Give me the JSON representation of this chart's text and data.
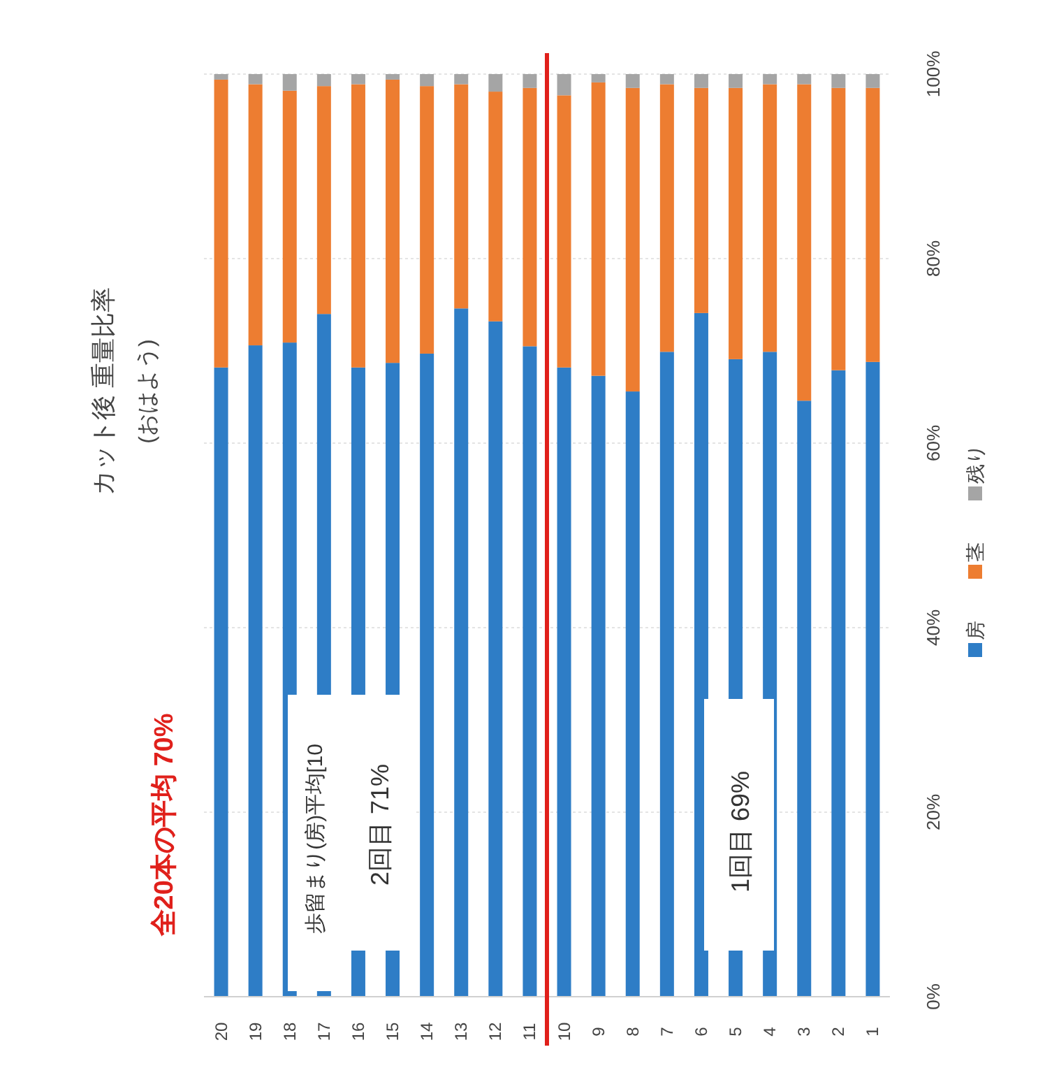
{
  "chart_data": {
    "type": "bar",
    "stacked": true,
    "title": "カット後 重量比率",
    "subtitle": "(おはよう)",
    "x": [
      20,
      19,
      18,
      17,
      16,
      15,
      14,
      13,
      12,
      11,
      10,
      9,
      8,
      7,
      6,
      5,
      4,
      3,
      2,
      1
    ],
    "xlim": [
      20.5,
      0.5
    ],
    "xticks": [
      1,
      2,
      3,
      4,
      5,
      6,
      7,
      8,
      9,
      10,
      11,
      12,
      13,
      14,
      15,
      16,
      17,
      18,
      19,
      20
    ],
    "ylim": [
      0,
      100
    ],
    "yticks": [
      {
        "value": 0,
        "label": "0%"
      },
      {
        "value": 20,
        "label": "20%"
      },
      {
        "value": 40,
        "label": "40%"
      },
      {
        "value": 60,
        "label": "60%"
      },
      {
        "value": 80,
        "label": "80%"
      },
      {
        "value": 100,
        "label": "100%"
      }
    ],
    "grid": "y",
    "legend": "right",
    "series": [
      {
        "name": "房",
        "color": "#2e7dc6",
        "values": [
          68.2,
          70.6,
          70.9,
          74.0,
          68.2,
          68.7,
          69.7,
          74.6,
          73.2,
          70.5,
          68.2,
          67.3,
          65.6,
          69.9,
          74.1,
          69.1,
          69.9,
          64.6,
          67.9,
          68.8
        ]
      },
      {
        "name": "茎",
        "color": "#ed7d31",
        "values": [
          31.2,
          28.3,
          27.3,
          24.7,
          30.7,
          30.7,
          29.0,
          24.3,
          24.9,
          28.0,
          29.5,
          31.8,
          32.9,
          29.0,
          24.4,
          29.4,
          29.0,
          34.3,
          30.6,
          29.7
        ]
      },
      {
        "name": "残り",
        "color": "#a5a5a5",
        "values": [
          0.6,
          1.1,
          1.8,
          1.3,
          1.1,
          0.6,
          1.3,
          1.1,
          1.9,
          1.5,
          2.3,
          0.9,
          1.5,
          1.1,
          1.5,
          1.5,
          1.1,
          1.1,
          1.5,
          1.5
        ]
      }
    ],
    "ref_lines": [
      {
        "axis": "x",
        "value": 10.5,
        "color": "#e0201b"
      }
    ],
    "annotations": [
      "全20本の平均 70%",
      "歩留まり(房)平均[10",
      "2回目 71%",
      "1回目 69%"
    ]
  }
}
